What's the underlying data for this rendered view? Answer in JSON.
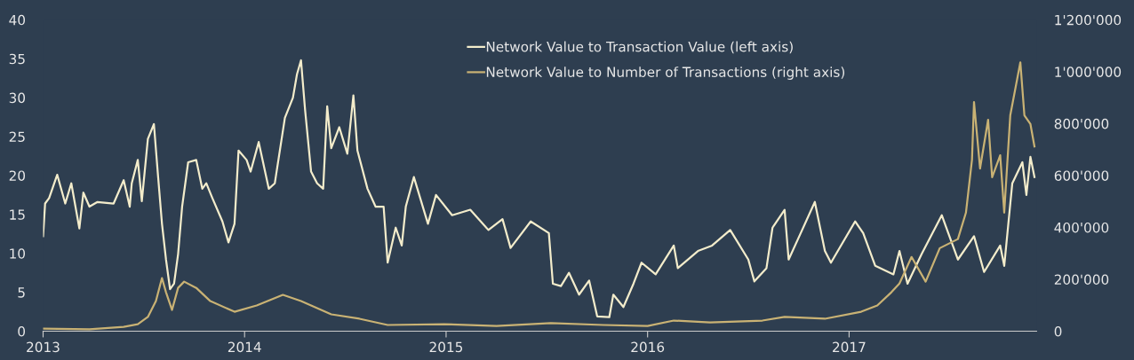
{
  "chart_data": {
    "type": "line",
    "series": [
      {
        "name": "Network Value to Transaction Value (left axis)",
        "color": "#f3eccb",
        "axis": "y",
        "x": [
          2013.0,
          2013.01,
          2013.03,
          2013.07,
          2013.11,
          2013.14,
          2013.18,
          2013.2,
          2013.23,
          2013.27,
          2013.35,
          2013.4,
          2013.43,
          2013.44,
          2013.47,
          2013.49,
          2013.52,
          2013.55,
          2013.57,
          2013.59,
          2013.61,
          2013.63,
          2013.65,
          2013.67,
          2013.69,
          2013.72,
          2013.76,
          2013.79,
          2013.81,
          2013.84,
          2013.89,
          2013.92,
          2013.95,
          2013.97,
          2014.01,
          2014.03,
          2014.07,
          2014.12,
          2014.15,
          2014.2,
          2014.24,
          2014.26,
          2014.28,
          2014.3,
          2014.33,
          2014.36,
          2014.39,
          2014.41,
          2014.43,
          2014.47,
          2014.51,
          2014.54,
          2014.56,
          2014.61,
          2014.65,
          2014.69,
          2014.71,
          2014.75,
          2014.78,
          2014.8,
          2014.84,
          2014.91,
          2014.95,
          2015.03,
          2015.12,
          2015.21,
          2015.28,
          2015.32,
          2015.42,
          2015.51,
          2015.53,
          2015.57,
          2015.61,
          2015.66,
          2015.71,
          2015.75,
          2015.81,
          2015.83,
          2015.88,
          2015.93,
          2015.97,
          2016.04,
          2016.13,
          2016.15,
          2016.25,
          2016.32,
          2016.41,
          2016.5,
          2016.53,
          2016.59,
          2016.62,
          2016.68,
          2016.7,
          2016.76,
          2016.83,
          2016.88,
          2016.91,
          2017.03,
          2017.07,
          2017.13,
          2017.22,
          2017.25,
          2017.29,
          2017.36,
          2017.46,
          2017.54,
          2017.62,
          2017.67,
          2017.75,
          2017.77,
          2017.81,
          2017.86,
          2017.88,
          2017.9,
          2017.92
        ],
        "values": [
          12.2,
          16.4,
          17.1,
          20.1,
          16.4,
          19.0,
          13.2,
          17.8,
          16.0,
          16.6,
          16.4,
          19.4,
          16.0,
          19.0,
          22.0,
          16.7,
          24.7,
          26.6,
          20.1,
          13.8,
          9.2,
          5.4,
          6.1,
          9.9,
          16.0,
          21.7,
          22.0,
          18.3,
          19.0,
          17.1,
          14.1,
          11.4,
          13.8,
          23.2,
          22.0,
          20.5,
          24.3,
          18.3,
          19.0,
          27.4,
          30.0,
          33.0,
          34.8,
          28.5,
          20.5,
          19.0,
          18.3,
          28.9,
          23.5,
          26.2,
          22.8,
          30.3,
          23.2,
          18.3,
          16.0,
          16.0,
          8.8,
          13.3,
          11.0,
          16.0,
          19.8,
          13.8,
          17.5,
          14.9,
          15.6,
          13.0,
          14.4,
          10.7,
          14.1,
          12.6,
          6.1,
          5.8,
          7.5,
          4.7,
          6.5,
          1.9,
          1.8,
          4.7,
          3.1,
          6.1,
          8.8,
          7.3,
          11.0,
          8.1,
          10.3,
          11.0,
          13.0,
          9.2,
          6.4,
          8.1,
          13.3,
          15.6,
          9.2,
          12.6,
          16.6,
          10.3,
          8.8,
          14.1,
          12.6,
          8.4,
          7.3,
          10.3,
          6.1,
          9.9,
          14.9,
          9.2,
          12.2,
          7.6,
          11.0,
          8.4,
          19.0,
          21.7,
          17.5,
          22.4,
          19.8
        ]
      },
      {
        "name": "Network Value to Number of Transactions (right axis)",
        "color": "#c9b274",
        "axis": "y2",
        "x": [
          2013.0,
          2013.23,
          2013.4,
          2013.47,
          2013.52,
          2013.56,
          2013.59,
          2013.61,
          2013.64,
          2013.67,
          2013.7,
          2013.76,
          2013.83,
          2013.95,
          2014.06,
          2014.19,
          2014.28,
          2014.43,
          2014.57,
          2014.71,
          2014.99,
          2015.25,
          2015.52,
          2015.78,
          2016.0,
          2016.13,
          2016.31,
          2016.57,
          2016.68,
          2016.88,
          2017.06,
          2017.14,
          2017.21,
          2017.25,
          2017.31,
          2017.38,
          2017.45,
          2017.54,
          2017.58,
          2017.61,
          2017.62,
          2017.65,
          2017.69,
          2017.71,
          2017.75,
          2017.77,
          2017.8,
          2017.85,
          2017.87,
          2017.9,
          2017.92
        ],
        "values": [
          10000,
          7000,
          17000,
          27000,
          55000,
          116000,
          205000,
          150000,
          82000,
          167000,
          191000,
          167000,
          116000,
          75000,
          99000,
          140000,
          116000,
          65000,
          48000,
          24000,
          27000,
          20000,
          31000,
          24000,
          20000,
          41000,
          34000,
          41000,
          55000,
          48000,
          75000,
          99000,
          150000,
          184000,
          286000,
          191000,
          320000,
          355000,
          457000,
          661000,
          883000,
          627000,
          815000,
          593000,
          678000,
          457000,
          832000,
          1036000,
          832000,
          798000,
          712000
        ]
      }
    ],
    "xlim": [
      2013.0,
      2017.93
    ],
    "xticks": [
      2013,
      2014,
      2015,
      2016,
      2017
    ],
    "ylim": [
      0,
      40
    ],
    "yticks": [
      0,
      5,
      10,
      15,
      20,
      25,
      30,
      35,
      40
    ],
    "y2lim": [
      0,
      1200000
    ],
    "y2ticks": [
      {
        "value": 0,
        "label": "0"
      },
      {
        "value": 200000,
        "label": "200'000"
      },
      {
        "value": 400000,
        "label": "400'000"
      },
      {
        "value": 600000,
        "label": "600'000"
      },
      {
        "value": 800000,
        "label": "800'000"
      },
      {
        "value": 1000000,
        "label": "1'000'000"
      },
      {
        "value": 1200000,
        "label": "1'200'000"
      }
    ],
    "grid": false,
    "legend": "top right",
    "line_style": "solid",
    "marker": "none"
  }
}
